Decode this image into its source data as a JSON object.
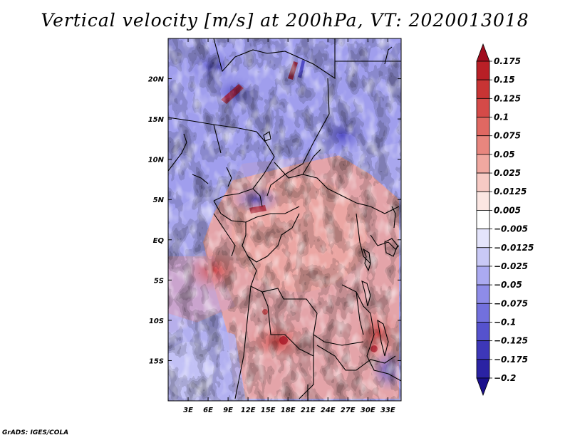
{
  "title": "Vertical velocity [m/s] at 200hPa, VT: 2020013018",
  "credit": "GrADS: IGES/COLA",
  "chart_data": {
    "type": "heatmap",
    "title": "Vertical velocity [m/s] at 200hPa, VT: 2020013018",
    "variable": "Vertical velocity",
    "units": "m/s",
    "level": "200hPa",
    "valid_time": "2020013018",
    "x_axis": {
      "range_deg": [
        0,
        35
      ],
      "ticks": [
        {
          "value": 3,
          "label": "3E"
        },
        {
          "value": 6,
          "label": "6E"
        },
        {
          "value": 9,
          "label": "9E"
        },
        {
          "value": 12,
          "label": "12E"
        },
        {
          "value": 15,
          "label": "15E"
        },
        {
          "value": 18,
          "label": "18E"
        },
        {
          "value": 21,
          "label": "21E"
        },
        {
          "value": 24,
          "label": "24E"
        },
        {
          "value": 27,
          "label": "27E"
        },
        {
          "value": 30,
          "label": "30E"
        },
        {
          "value": 33,
          "label": "33E"
        }
      ]
    },
    "y_axis": {
      "range_deg": [
        -20,
        25
      ],
      "ticks": [
        {
          "value": 20,
          "label": "20N"
        },
        {
          "value": 15,
          "label": "15N"
        },
        {
          "value": 10,
          "label": "10N"
        },
        {
          "value": 5,
          "label": "5N"
        },
        {
          "value": 0,
          "label": "EQ"
        },
        {
          "value": -5,
          "label": "5S"
        },
        {
          "value": -10,
          "label": "10S"
        },
        {
          "value": -15,
          "label": "15S"
        }
      ]
    },
    "colorbar": {
      "labels": [
        "0.175",
        "0.15",
        "0.125",
        "0.1",
        "0.075",
        "0.05",
        "0.025",
        "0.0125",
        "0.005",
        "−0.005",
        "−0.0125",
        "−0.025",
        "−0.05",
        "−0.075",
        "−0.1",
        "−0.125",
        "−0.175",
        "−0.2"
      ],
      "colors": [
        "#a00d1e",
        "#b91f26",
        "#c83434",
        "#d54a48",
        "#e06862",
        "#e8867e",
        "#f0a8a0",
        "#f7cac4",
        "#fbe6e2",
        "#ffffff",
        "#e4e4fb",
        "#c9c9f6",
        "#abaaf1",
        "#8e8ce8",
        "#7270dd",
        "#5552cd",
        "#3d37b8",
        "#2a22a3",
        "#1a0f8c"
      ]
    }
  }
}
